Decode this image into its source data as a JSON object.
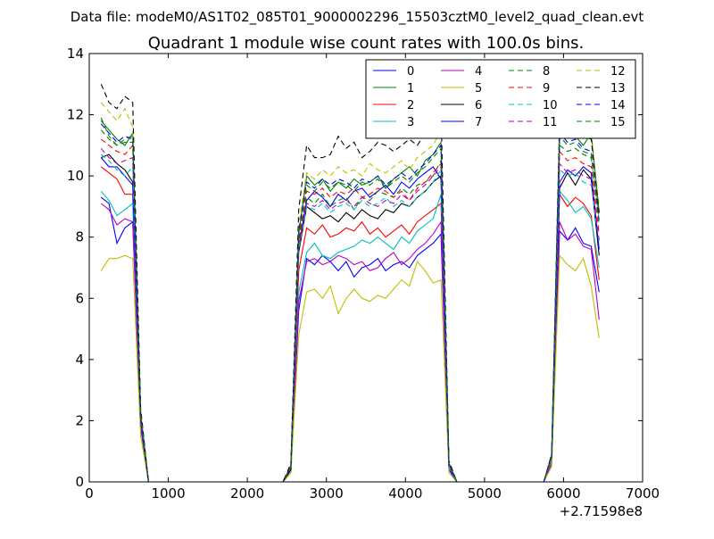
{
  "figure": {
    "suptitle": "Data file: modeM0/AS1T02_085T01_9000002296_15503cztM0_level2_quad_clean.evt"
  },
  "chart_data": {
    "type": "line",
    "title": "Quadrant 1 module wise count rates with 100.0s bins.",
    "xlabel": "",
    "ylabel": "",
    "xlim": [
      0,
      7000
    ],
    "ylim": [
      0,
      14
    ],
    "x_offset_label": "+2.71598e8",
    "x_ticks": [
      0,
      1000,
      2000,
      3000,
      4000,
      5000,
      6000,
      7000
    ],
    "y_ticks": [
      0,
      2,
      4,
      6,
      8,
      10,
      12,
      14
    ],
    "grid": false,
    "legend": {
      "position": "top-right",
      "ncol": 4
    },
    "x": [
      150,
      250,
      350,
      450,
      550,
      650,
      750,
      2450,
      2550,
      2650,
      2750,
      2850,
      2950,
      3050,
      3150,
      3250,
      3350,
      3450,
      3550,
      3650,
      3750,
      3850,
      3950,
      4050,
      4150,
      4250,
      4350,
      4450,
      4550,
      4650,
      5750,
      5850,
      5950,
      6050,
      6150,
      6250,
      6350,
      6450
    ],
    "series": [
      {
        "name": "0",
        "color": "#0000ff",
        "dash": "solid",
        "values": [
          9.3,
          9.1,
          7.8,
          8.3,
          8.5,
          1.8,
          0,
          0,
          0.3,
          5.6,
          7.3,
          7.1,
          7.4,
          7.2,
          6.9,
          7.2,
          6.7,
          7.0,
          7.1,
          7.3,
          6.9,
          7.1,
          7.2,
          7.0,
          7.4,
          7.6,
          7.8,
          8.1,
          0.4,
          0,
          0,
          0.6,
          8.2,
          7.9,
          8.3,
          7.8,
          7.7,
          6.2
        ]
      },
      {
        "name": "1",
        "color": "#008000",
        "dash": "solid",
        "values": [
          11.8,
          11.5,
          11.2,
          11.0,
          11.4,
          2.2,
          0,
          0,
          0.5,
          8.1,
          10.0,
          9.7,
          9.9,
          9.5,
          9.8,
          9.6,
          9.9,
          9.7,
          9.8,
          10.0,
          9.6,
          9.9,
          10.1,
          10.3,
          10.0,
          10.5,
          10.7,
          11.1,
          0.6,
          0,
          0,
          0.8,
          11.2,
          11.5,
          11.3,
          11.0,
          11.4,
          8.8
        ]
      },
      {
        "name": "2",
        "color": "#ff0000",
        "dash": "solid",
        "values": [
          10.3,
          10.1,
          9.9,
          9.4,
          9.4,
          1.9,
          0,
          0,
          0.4,
          6.9,
          8.3,
          8.1,
          8.4,
          8.0,
          8.1,
          8.3,
          8.2,
          8.5,
          8.1,
          8.3,
          8.0,
          8.2,
          8.4,
          8.1,
          8.5,
          8.7,
          8.9,
          9.1,
          0.5,
          0,
          0,
          0.7,
          9.4,
          9.0,
          9.3,
          9.1,
          8.7,
          6.6
        ]
      },
      {
        "name": "3",
        "color": "#00bfbf",
        "dash": "solid",
        "values": [
          9.5,
          9.2,
          8.7,
          8.9,
          9.1,
          2.0,
          0,
          0,
          0.4,
          6.2,
          7.5,
          7.8,
          7.4,
          7.3,
          7.5,
          7.6,
          7.7,
          7.9,
          7.8,
          8.0,
          7.8,
          7.6,
          8.0,
          7.8,
          8.2,
          8.4,
          8.6,
          9.4,
          0.5,
          0,
          0,
          0.7,
          9.5,
          9.2,
          8.8,
          9.0,
          8.6,
          7.0
        ]
      },
      {
        "name": "4",
        "color": "#bf00bf",
        "dash": "solid",
        "values": [
          9.1,
          8.9,
          8.4,
          8.6,
          8.5,
          1.9,
          0,
          0,
          0.4,
          5.9,
          7.2,
          7.3,
          7.1,
          7.2,
          7.4,
          7.3,
          7.1,
          7.2,
          6.9,
          7.0,
          7.3,
          7.5,
          7.1,
          7.3,
          7.6,
          7.8,
          8.1,
          8.5,
          0.5,
          0,
          0,
          0.6,
          8.5,
          7.9,
          8.1,
          7.7,
          7.6,
          5.3
        ]
      },
      {
        "name": "5",
        "color": "#bfbf00",
        "dash": "solid",
        "values": [
          6.9,
          7.3,
          7.3,
          7.4,
          7.3,
          1.5,
          0,
          0,
          0.3,
          4.8,
          6.2,
          6.3,
          6.0,
          6.4,
          5.5,
          6.0,
          6.3,
          6.0,
          5.9,
          6.1,
          6.0,
          6.3,
          6.6,
          6.4,
          7.2,
          6.9,
          6.5,
          6.6,
          0.3,
          0,
          0,
          0.5,
          7.4,
          7.1,
          6.9,
          7.3,
          6.4,
          4.7
        ]
      },
      {
        "name": "6",
        "color": "#000000",
        "dash": "solid",
        "values": [
          10.6,
          10.7,
          10.4,
          10.2,
          9.8,
          2.0,
          0,
          0,
          0.4,
          7.5,
          9.0,
          8.8,
          8.6,
          8.7,
          8.5,
          8.8,
          8.6,
          8.9,
          8.7,
          8.6,
          8.9,
          8.8,
          9.1,
          9.0,
          9.3,
          9.5,
          9.8,
          10.0,
          0.5,
          0,
          0,
          0.8,
          9.6,
          10.1,
          9.7,
          10.2,
          9.9,
          7.4
        ]
      },
      {
        "name": "7",
        "color": "#0000ff",
        "dash": "solid",
        "values": [
          10.6,
          10.3,
          10.3,
          10.0,
          9.7,
          2.0,
          0,
          0,
          0.5,
          7.7,
          9.2,
          9.5,
          9.3,
          9.0,
          9.4,
          9.2,
          9.5,
          9.6,
          9.3,
          9.5,
          9.7,
          9.4,
          9.8,
          9.6,
          9.9,
          10.1,
          10.3,
          9.9,
          0.6,
          0,
          0,
          0.8,
          9.8,
          10.2,
          10.0,
          10.3,
          10.1,
          7.6
        ]
      },
      {
        "name": "8",
        "color": "#008000",
        "dash": "dashed",
        "values": [
          11.9,
          11.3,
          11.0,
          11.2,
          11.3,
          2.2,
          0,
          0,
          0.5,
          7.9,
          9.3,
          9.1,
          9.4,
          9.0,
          9.2,
          9.3,
          8.9,
          9.3,
          9.2,
          9.5,
          9.4,
          9.3,
          9.6,
          9.4,
          9.7,
          9.8,
          10.0,
          10.5,
          0.6,
          0,
          0,
          0.8,
          11.0,
          10.8,
          10.9,
          10.7,
          10.6,
          8.6
        ]
      },
      {
        "name": "9",
        "color": "#ff0000",
        "dash": "dashed",
        "values": [
          11.2,
          11.0,
          10.8,
          10.7,
          11.0,
          2.1,
          0,
          0,
          0.5,
          7.8,
          9.5,
          9.4,
          9.6,
          9.3,
          9.5,
          9.4,
          9.6,
          9.3,
          9.4,
          9.6,
          9.5,
          9.3,
          9.5,
          9.2,
          9.6,
          9.8,
          10.1,
          10.4,
          0.6,
          0,
          0,
          0.8,
          10.8,
          10.5,
          10.6,
          10.4,
          10.3,
          8.1
        ]
      },
      {
        "name": "10",
        "color": "#00bfbf",
        "dash": "dashed",
        "values": [
          10.7,
          10.5,
          10.2,
          10.0,
          10.3,
          2.1,
          0,
          0,
          0.5,
          7.6,
          9.0,
          8.9,
          9.1,
          8.8,
          9.0,
          9.1,
          8.9,
          9.2,
          9.0,
          9.1,
          9.3,
          9.0,
          9.2,
          9.0,
          9.3,
          9.5,
          9.8,
          10.2,
          0.5,
          0,
          0,
          0.8,
          10.2,
          10.0,
          10.1,
          9.8,
          9.7,
          7.8
        ]
      },
      {
        "name": "11",
        "color": "#bf00bf",
        "dash": "dashed",
        "values": [
          10.9,
          10.6,
          10.4,
          10.5,
          10.6,
          2.1,
          0,
          0,
          0.5,
          7.7,
          9.1,
          9.0,
          9.2,
          8.9,
          9.1,
          9.2,
          9.0,
          9.3,
          9.1,
          9.0,
          9.2,
          9.1,
          9.4,
          9.2,
          9.5,
          9.7,
          10.0,
          10.3,
          0.5,
          0,
          0,
          0.8,
          10.4,
          10.1,
          10.2,
          10.0,
          9.9,
          7.9
        ]
      },
      {
        "name": "12",
        "color": "#bfbf00",
        "dash": "dashed",
        "values": [
          12.4,
          12.1,
          11.8,
          12.2,
          11.6,
          2.3,
          0,
          0,
          0.5,
          8.4,
          10.1,
          9.9,
          10.2,
          10.0,
          10.3,
          10.1,
          10.2,
          10.0,
          10.4,
          10.2,
          10.1,
          10.3,
          10.5,
          10.2,
          10.6,
          10.8,
          11.0,
          11.5,
          0.6,
          0,
          0,
          0.9,
          11.9,
          11.6,
          11.8,
          11.5,
          11.4,
          9.0
        ]
      },
      {
        "name": "13",
        "color": "#000000",
        "dash": "dashed",
        "values": [
          13.0,
          12.4,
          12.2,
          12.6,
          12.4,
          2.4,
          0,
          0,
          0.6,
          8.9,
          11.0,
          10.6,
          10.6,
          10.7,
          11.3,
          10.9,
          11.1,
          10.6,
          10.8,
          11.1,
          11.0,
          10.8,
          11.0,
          11.2,
          11.0,
          11.4,
          11.8,
          12.2,
          0.7,
          0,
          0,
          0.9,
          11.8,
          11.5,
          11.7,
          11.3,
          11.2,
          8.8
        ]
      },
      {
        "name": "14",
        "color": "#0000ff",
        "dash": "dashed",
        "values": [
          11.7,
          11.4,
          11.1,
          11.3,
          11.2,
          2.2,
          0,
          0,
          0.5,
          8.2,
          9.8,
          9.6,
          9.9,
          9.7,
          9.9,
          9.8,
          9.6,
          9.9,
          9.8,
          10.0,
          9.7,
          9.9,
          10.1,
          9.9,
          10.2,
          10.4,
          10.7,
          11.0,
          0.6,
          0,
          0,
          0.9,
          11.4,
          11.1,
          11.2,
          10.9,
          10.8,
          8.5
        ]
      },
      {
        "name": "15",
        "color": "#008000",
        "dash": "dashed",
        "values": [
          11.5,
          11.2,
          11.0,
          11.1,
          11.1,
          2.2,
          0,
          0,
          0.5,
          8.0,
          9.7,
          9.5,
          9.8,
          9.6,
          9.8,
          9.7,
          9.5,
          9.8,
          9.7,
          9.9,
          9.6,
          9.8,
          10.0,
          9.8,
          10.1,
          10.3,
          10.6,
          10.9,
          0.6,
          0,
          0,
          0.8,
          11.3,
          11.0,
          11.1,
          10.8,
          10.7,
          8.4
        ]
      }
    ]
  }
}
